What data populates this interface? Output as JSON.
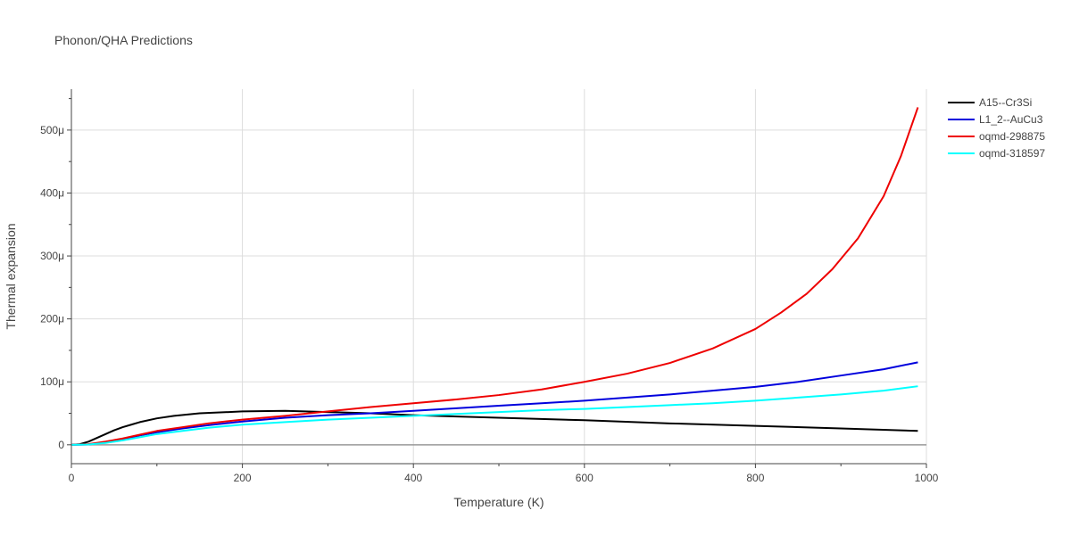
{
  "chart_data": {
    "type": "line",
    "title": "Phonon/QHA Predictions",
    "xlabel": "Temperature (K)",
    "ylabel": "Thermal expansion",
    "xlim": [
      0,
      1000
    ],
    "ylim": [
      -3e-05,
      0.000565
    ],
    "xticks": [
      0,
      200,
      400,
      600,
      800,
      1000
    ],
    "xtick_labels": [
      "0",
      "200",
      "400",
      "600",
      "800",
      "1000"
    ],
    "yticks": [
      0,
      0.0001,
      0.0002,
      0.0003,
      0.0004,
      0.0005
    ],
    "ytick_labels": [
      "0",
      "100μ",
      "200μ",
      "300μ",
      "400μ",
      "500μ"
    ],
    "grid": true,
    "legend_position": "top-right",
    "series": [
      {
        "name": "A15--Cr3Si",
        "color": "#000000",
        "x": [
          0,
          10,
          20,
          30,
          40,
          50,
          60,
          70,
          80,
          100,
          120,
          150,
          200,
          250,
          300,
          350,
          400,
          500,
          600,
          700,
          800,
          900,
          990
        ],
        "y": [
          0,
          1e-06,
          5e-06,
          1.1e-05,
          1.7e-05,
          2.3e-05,
          2.8e-05,
          3.2e-05,
          3.6e-05,
          4.2e-05,
          4.6e-05,
          5e-05,
          5.3e-05,
          5.4e-05,
          5.2e-05,
          5e-05,
          4.7e-05,
          4.3e-05,
          3.9e-05,
          3.4e-05,
          3e-05,
          2.6e-05,
          2.2e-05
        ]
      },
      {
        "name": "L1_2--AuCu3",
        "color": "#0000dd",
        "x": [
          0,
          20,
          40,
          60,
          80,
          100,
          130,
          160,
          200,
          250,
          300,
          350,
          400,
          450,
          500,
          550,
          600,
          650,
          700,
          750,
          800,
          850,
          900,
          950,
          990
        ],
        "y": [
          0,
          5e-07,
          4e-06,
          9e-06,
          1.5e-05,
          2e-05,
          2.6e-05,
          3.1e-05,
          3.7e-05,
          4.3e-05,
          4.7e-05,
          5e-05,
          5.4e-05,
          5.8e-05,
          6.2e-05,
          6.6e-05,
          7e-05,
          7.5e-05,
          8e-05,
          8.6e-05,
          9.2e-05,
          0.0001,
          0.00011,
          0.00012,
          0.000131
        ]
      },
      {
        "name": "oqmd-298875",
        "color": "#ee0000",
        "x": [
          0,
          20,
          40,
          60,
          80,
          100,
          130,
          160,
          200,
          250,
          300,
          350,
          400,
          450,
          500,
          550,
          600,
          650,
          700,
          750,
          800,
          830,
          860,
          890,
          920,
          950,
          970,
          990
        ],
        "y": [
          0,
          1e-06,
          5e-06,
          1e-05,
          1.6e-05,
          2.2e-05,
          2.8e-05,
          3.4e-05,
          4e-05,
          4.6e-05,
          5.3e-05,
          6e-05,
          6.6e-05,
          7.2e-05,
          7.9e-05,
          8.8e-05,
          0.0001,
          0.000113,
          0.00013,
          0.000153,
          0.000184,
          0.00021,
          0.00024,
          0.000279,
          0.000328,
          0.000395,
          0.000458,
          0.000536
        ]
      },
      {
        "name": "oqmd-318597",
        "color": "#00ffff",
        "x": [
          0,
          20,
          40,
          60,
          80,
          100,
          130,
          160,
          200,
          250,
          300,
          350,
          400,
          450,
          500,
          550,
          600,
          650,
          700,
          750,
          800,
          850,
          900,
          950,
          990
        ],
        "y": [
          0,
          5e-07,
          3e-06,
          7e-06,
          1.2e-05,
          1.7e-05,
          2.2e-05,
          2.7e-05,
          3.2e-05,
          3.6e-05,
          4e-05,
          4.3e-05,
          4.6e-05,
          4.9e-05,
          5.2e-05,
          5.5e-05,
          5.7e-05,
          6e-05,
          6.3e-05,
          6.6e-05,
          7e-05,
          7.5e-05,
          8e-05,
          8.6e-05,
          9.3e-05
        ]
      }
    ]
  }
}
